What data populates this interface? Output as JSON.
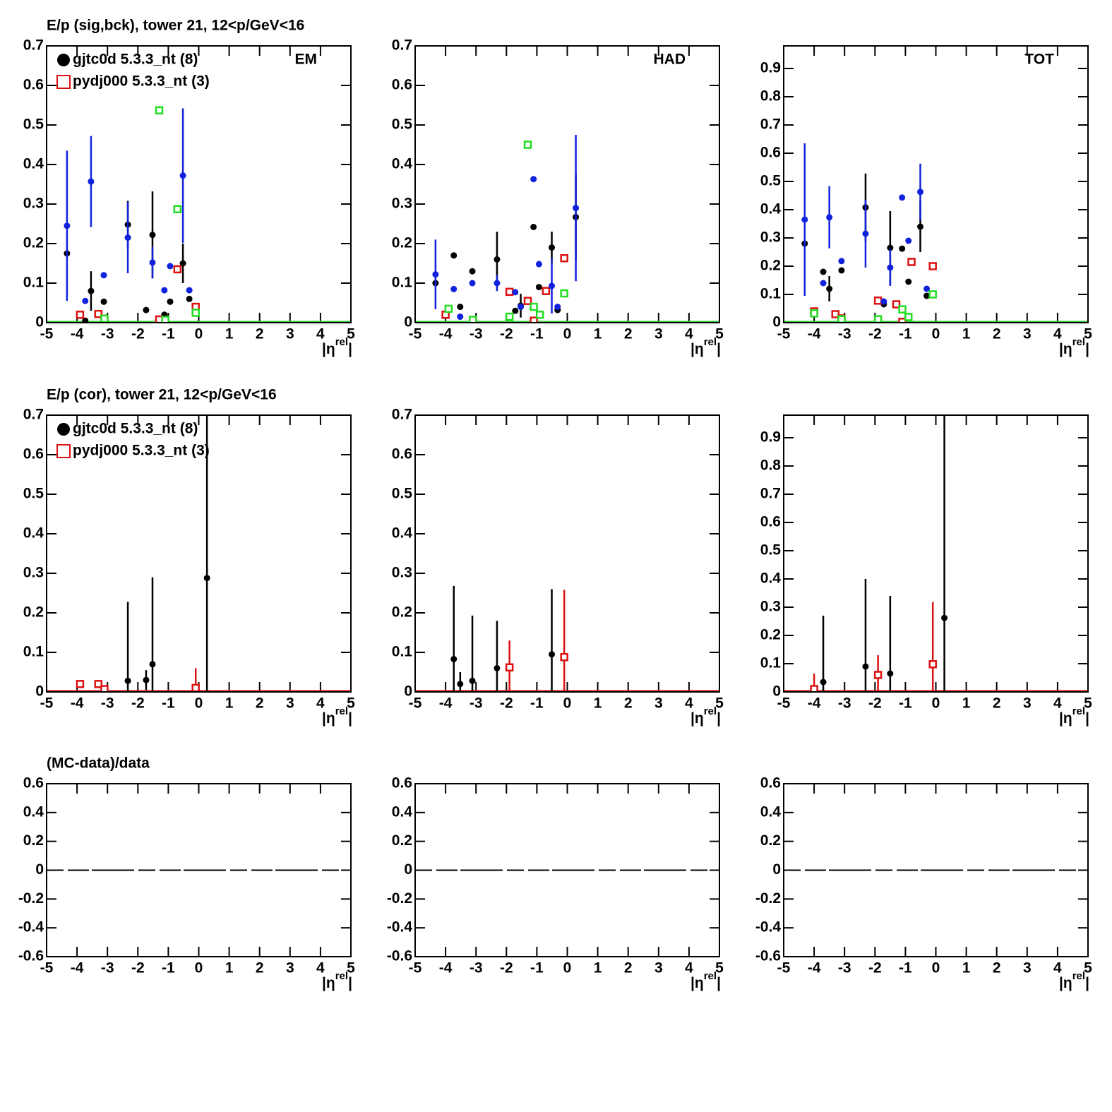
{
  "chart_data": [
    {
      "type": "scatter",
      "title": "E/p (sig,bck), tower 21, 12<p/GeV<16",
      "annotation": "EM",
      "xlabel": [
        "|η",
        "rel",
        "|"
      ],
      "xlim": [
        -5,
        5
      ],
      "xticks": [
        -5,
        -4,
        -3,
        -2,
        -1,
        0,
        1,
        2,
        3,
        4,
        5
      ],
      "ylim": [
        0,
        0.7
      ],
      "yticks": [
        0,
        0.1,
        0.2,
        0.3,
        0.4,
        0.5,
        0.6,
        0.7
      ],
      "baseline_color": "#33cc33",
      "series": [
        {
          "name": "gjtc0d 5.3.3_nt (8)",
          "color": "#000000",
          "marker": "circle",
          "x": [
            -4.33,
            -3.73,
            -3.54,
            -3.12,
            -2.33,
            -1.73,
            -1.52,
            -1.13,
            -0.94,
            -0.52,
            -0.31
          ],
          "values": [
            0.175,
            0.005,
            0.08,
            0.053,
            0.248,
            0.032,
            0.222,
            0.02,
            0.053,
            0.15,
            0.06
          ],
          "errors": [
            null,
            null,
            0.05,
            null,
            0.06,
            null,
            0.11,
            null,
            null,
            0.05,
            null
          ]
        },
        {
          "name": "pydj000 5.3.3_nt (3)",
          "color": "#dd1111",
          "marker": "square",
          "x": [
            -3.9,
            -3.3,
            -3.1,
            -1.3,
            -0.7,
            -0.1
          ],
          "values": [
            0.02,
            0.022,
            0.01,
            0.008,
            0.135,
            0.04
          ],
          "errors": [
            null,
            null,
            null,
            null,
            null,
            null
          ]
        },
        {
          "color": "#1122dd",
          "marker": "circle",
          "x": [
            -4.33,
            -3.73,
            -3.54,
            -3.12,
            -2.33,
            -1.52,
            -1.13,
            -0.94,
            -0.52,
            -0.31
          ],
          "values": [
            0.245,
            0.055,
            0.357,
            0.12,
            0.215,
            0.152,
            0.082,
            0.143,
            0.372,
            0.082
          ],
          "errors": [
            0.19,
            null,
            0.115,
            null,
            0.09,
            0.04,
            null,
            null,
            0.17,
            null
          ]
        },
        {
          "color": "#22dd22",
          "marker": "square",
          "x": [
            -3.1,
            -1.3,
            -1.1,
            -0.7,
            -0.1
          ],
          "values": [
            0.01,
            0.537,
            0.007,
            0.287,
            0.025
          ],
          "errors": [
            null,
            null,
            null,
            null,
            null
          ]
        }
      ]
    },
    {
      "type": "scatter",
      "annotation": "HAD",
      "xlabel": [
        "|η",
        "rel",
        "|"
      ],
      "xlim": [
        -5,
        5
      ],
      "xticks": [
        -5,
        -4,
        -3,
        -2,
        -1,
        0,
        1,
        2,
        3,
        4,
        5
      ],
      "ylim": [
        0,
        0.7
      ],
      "yticks": [
        0,
        0.1,
        0.2,
        0.3,
        0.4,
        0.5,
        0.6,
        0.7
      ],
      "baseline_color": "#33cc33",
      "series": [
        {
          "color": "#000000",
          "marker": "circle",
          "x": [
            -4.33,
            -3.73,
            -3.52,
            -3.12,
            -2.31,
            -1.71,
            -1.53,
            -1.11,
            -0.93,
            -0.51,
            -0.32,
            0.28
          ],
          "values": [
            0.1,
            0.17,
            0.04,
            0.13,
            0.16,
            0.03,
            0.043,
            0.242,
            0.09,
            0.19,
            0.032,
            0.267
          ],
          "errors": [
            null,
            null,
            null,
            null,
            0.07,
            null,
            0.03,
            null,
            null,
            0.04,
            null,
            0.11
          ]
        },
        {
          "color": "#dd1111",
          "marker": "square",
          "x": [
            -4.0,
            -3.1,
            -1.9,
            -1.3,
            -1.1,
            -0.7,
            -0.1
          ],
          "values": [
            0.02,
            0.005,
            0.078,
            0.055,
            0.005,
            0.08,
            0.163
          ],
          "errors": [
            null,
            null,
            null,
            null,
            null,
            null,
            null
          ]
        },
        {
          "color": "#1122dd",
          "marker": "circle",
          "x": [
            -4.33,
            -3.73,
            -3.52,
            -3.12,
            -2.31,
            -1.71,
            -1.53,
            -1.11,
            -0.93,
            -0.51,
            -0.32,
            0.28
          ],
          "values": [
            0.122,
            0.085,
            0.015,
            0.1,
            0.1,
            0.077,
            0.04,
            0.363,
            0.148,
            0.093,
            0.04,
            0.29
          ],
          "errors": [
            0.088,
            null,
            null,
            null,
            0.02,
            null,
            null,
            null,
            null,
            0.07,
            null,
            0.185
          ]
        },
        {
          "color": "#22dd22",
          "marker": "square",
          "x": [
            -3.9,
            -3.1,
            -1.9,
            -1.3,
            -1.1,
            -0.9,
            -0.1
          ],
          "values": [
            0.035,
            0.007,
            0.015,
            0.45,
            0.04,
            0.02,
            0.074
          ],
          "errors": [
            null,
            null,
            null,
            null,
            null,
            null,
            null
          ]
        }
      ]
    },
    {
      "type": "scatter",
      "annotation": "TOT",
      "xlabel": [
        "|η",
        "rel",
        "|"
      ],
      "xlim": [
        -5,
        5
      ],
      "xticks": [
        -5,
        -4,
        -3,
        -2,
        -1,
        0,
        1,
        2,
        3,
        4,
        5
      ],
      "ylim": [
        0,
        0.98
      ],
      "yticks": [
        0,
        0.1,
        0.2,
        0.3,
        0.4,
        0.5,
        0.6,
        0.7,
        0.8,
        0.9
      ],
      "baseline_color": "#33cc33",
      "series": [
        {
          "color": "#000000",
          "marker": "circle",
          "x": [
            -4.31,
            -3.7,
            -3.5,
            -3.1,
            -2.31,
            -1.71,
            -1.5,
            -1.11,
            -0.9,
            -0.51,
            -0.3
          ],
          "values": [
            0.28,
            0.18,
            0.12,
            0.185,
            0.408,
            0.065,
            0.265,
            0.262,
            0.145,
            0.34,
            0.095
          ],
          "errors": [
            null,
            null,
            0.045,
            null,
            0.12,
            null,
            0.13,
            null,
            null,
            0.09,
            null
          ]
        },
        {
          "color": "#dd1111",
          "marker": "square",
          "x": [
            -4.0,
            -3.3,
            -3.1,
            -1.9,
            -1.3,
            -1.1,
            -0.8,
            -0.1
          ],
          "values": [
            0.04,
            0.03,
            0.015,
            0.078,
            0.065,
            0.003,
            0.215,
            0.2
          ],
          "errors": [
            null,
            null,
            null,
            null,
            null,
            null,
            null,
            null
          ]
        },
        {
          "color": "#1122dd",
          "marker": "circle",
          "x": [
            -4.31,
            -3.7,
            -3.5,
            -3.1,
            -2.31,
            -1.71,
            -1.5,
            -1.11,
            -0.9,
            -0.51,
            -0.3
          ],
          "values": [
            0.365,
            0.14,
            0.373,
            0.218,
            0.315,
            0.075,
            0.195,
            0.443,
            0.29,
            0.463,
            0.12
          ],
          "errors": [
            0.27,
            null,
            0.11,
            null,
            0.12,
            null,
            0.065,
            null,
            null,
            0.1,
            null
          ]
        },
        {
          "color": "#22dd22",
          "marker": "square",
          "x": [
            -4.0,
            -3.1,
            -1.9,
            -1.1,
            -0.9,
            -0.1
          ],
          "values": [
            0.033,
            0.012,
            0.012,
            0.047,
            0.02,
            0.1
          ],
          "errors": [
            null,
            null,
            null,
            null,
            null,
            null
          ]
        }
      ]
    },
    {
      "type": "scatter",
      "title": "E/p (cor), tower 21, 12<p/GeV<16",
      "xlabel": [
        "|η",
        "rel",
        "|"
      ],
      "xlim": [
        -5,
        5
      ],
      "xticks": [
        -5,
        -4,
        -3,
        -2,
        -1,
        0,
        1,
        2,
        3,
        4,
        5
      ],
      "ylim": [
        0,
        0.7
      ],
      "yticks": [
        0,
        0.1,
        0.2,
        0.3,
        0.4,
        0.5,
        0.6,
        0.7
      ],
      "baseline_color": "#dd1111",
      "series": [
        {
          "name": "gjtc0d 5.3.3_nt (8)",
          "color": "#000000",
          "marker": "circle",
          "x": [
            -2.33,
            -1.73,
            -1.52,
            0.27
          ],
          "values": [
            0.028,
            0.03,
            0.07,
            0.288
          ],
          "errors": [
            0.2,
            0.025,
            0.22,
            0.41
          ]
        },
        {
          "name": "pydj000 5.3.3_nt (3)",
          "color": "#dd1111",
          "marker": "square",
          "x": [
            -3.9,
            -3.3,
            -3.1,
            -0.1
          ],
          "values": [
            0.02,
            0.02,
            0.007,
            0.01
          ],
          "errors": [
            0.01,
            0.01,
            null,
            0.05
          ]
        }
      ]
    },
    {
      "type": "scatter",
      "xlabel": [
        "|η",
        "rel",
        "|"
      ],
      "xlim": [
        -5,
        5
      ],
      "xticks": [
        -5,
        -4,
        -3,
        -2,
        -1,
        0,
        1,
        2,
        3,
        4,
        5
      ],
      "ylim": [
        0,
        0.7
      ],
      "yticks": [
        0,
        0.1,
        0.2,
        0.3,
        0.4,
        0.5,
        0.6,
        0.7
      ],
      "baseline_color": "#dd1111",
      "series": [
        {
          "color": "#000000",
          "marker": "circle",
          "x": [
            -3.73,
            -3.52,
            -3.12,
            -2.31,
            -0.51
          ],
          "values": [
            0.083,
            0.02,
            0.028,
            0.06,
            0.095
          ],
          "errors": [
            0.185,
            0.03,
            0.165,
            0.12,
            0.165
          ]
        },
        {
          "color": "#dd1111",
          "marker": "square",
          "x": [
            -1.9,
            -0.1
          ],
          "values": [
            0.062,
            0.088
          ],
          "errors": [
            0.068,
            0.17
          ]
        }
      ]
    },
    {
      "type": "scatter",
      "xlabel": [
        "|η",
        "rel",
        "|"
      ],
      "xlim": [
        -5,
        5
      ],
      "xticks": [
        -5,
        -4,
        -3,
        -2,
        -1,
        0,
        1,
        2,
        3,
        4,
        5
      ],
      "ylim": [
        0,
        0.98
      ],
      "yticks": [
        0,
        0.1,
        0.2,
        0.3,
        0.4,
        0.5,
        0.6,
        0.7,
        0.8,
        0.9
      ],
      "baseline_color": "#dd1111",
      "series": [
        {
          "color": "#000000",
          "marker": "circle",
          "x": [
            -3.7,
            -2.31,
            -1.5,
            0.28
          ],
          "values": [
            0.035,
            0.09,
            0.065,
            0.262
          ],
          "errors": [
            0.235,
            0.31,
            0.275,
            0.8
          ]
        },
        {
          "color": "#dd1111",
          "marker": "square",
          "x": [
            -4.0,
            -1.9,
            -0.1
          ],
          "values": [
            0.01,
            0.06,
            0.098
          ],
          "errors": [
            0.055,
            0.07,
            0.22
          ]
        }
      ]
    },
    {
      "type": "scatter",
      "title": "(MC-data)/data",
      "xlabel": [
        "|η",
        "rel",
        "|"
      ],
      "xlim": [
        -5,
        5
      ],
      "xticks": [
        -5,
        -4,
        -3,
        -2,
        -1,
        0,
        1,
        2,
        3,
        4,
        5
      ],
      "ylim": [
        -0.6,
        0.6
      ],
      "yticks": [
        -0.6,
        -0.4,
        -0.2,
        0,
        0.2,
        0.4,
        0.6
      ],
      "zero_line": true,
      "series": []
    },
    {
      "type": "scatter",
      "xlabel": [
        "|η",
        "rel",
        "|"
      ],
      "xlim": [
        -5,
        5
      ],
      "xticks": [
        -5,
        -4,
        -3,
        -2,
        -1,
        0,
        1,
        2,
        3,
        4,
        5
      ],
      "ylim": [
        -0.6,
        0.6
      ],
      "yticks": [
        -0.6,
        -0.4,
        -0.2,
        0,
        0.2,
        0.4,
        0.6
      ],
      "zero_line": true,
      "series": []
    },
    {
      "type": "scatter",
      "xlabel": [
        "|η",
        "rel",
        "|"
      ],
      "xlim": [
        -5,
        5
      ],
      "xticks": [
        -5,
        -4,
        -3,
        -2,
        -1,
        0,
        1,
        2,
        3,
        4,
        5
      ],
      "ylim": [
        -0.6,
        0.6
      ],
      "yticks": [
        -0.6,
        -0.4,
        -0.2,
        0,
        0.2,
        0.4,
        0.6
      ],
      "zero_line": true,
      "series": []
    }
  ]
}
